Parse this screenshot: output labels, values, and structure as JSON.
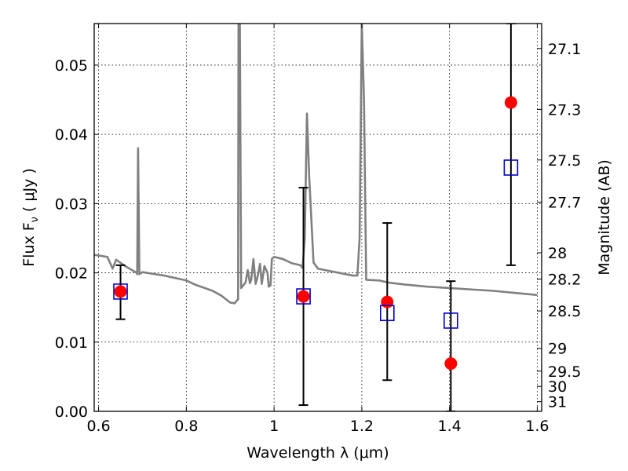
{
  "chart_data": {
    "type": "scatter",
    "xlabel": "Wavelength  λ (μm)",
    "ylabel": "Flux  F",
    "ylabel_sub": "ν",
    "ylabel_unit": "( μJy )",
    "ylabel_right": "Magnitude (AB)",
    "xlim": [
      0.59,
      1.61
    ],
    "ylim": [
      0.0,
      0.056
    ],
    "grid": true,
    "x_ticks": [
      {
        "value": 0.6,
        "label": "0.6"
      },
      {
        "value": 0.8,
        "label": "0.8"
      },
      {
        "value": 1.0,
        "label": "1"
      },
      {
        "value": 1.2,
        "label": "1.2"
      },
      {
        "value": 1.4,
        "label": "1.4"
      },
      {
        "value": 1.6,
        "label": "1.6"
      }
    ],
    "y_ticks": [
      {
        "value": 0.0,
        "label": "0.00"
      },
      {
        "value": 0.01,
        "label": "0.01"
      },
      {
        "value": 0.02,
        "label": "0.02"
      },
      {
        "value": 0.03,
        "label": "0.03"
      },
      {
        "value": 0.04,
        "label": "0.04"
      },
      {
        "value": 0.05,
        "label": "0.05"
      }
    ],
    "right_ticks": [
      {
        "label": "27.1",
        "flux": 0.0524
      },
      {
        "label": "27.3",
        "flux": 0.0436
      },
      {
        "label": "27.5",
        "flux": 0.0363
      },
      {
        "label": "27.7",
        "flux": 0.0302
      },
      {
        "label": "28",
        "flux": 0.0229
      },
      {
        "label": "28.2",
        "flux": 0.0191
      },
      {
        "label": "28.5",
        "flux": 0.0145
      },
      {
        "label": "29",
        "flux": 0.0091
      },
      {
        "label": "29.5",
        "flux": 0.0058
      },
      {
        "label": "30",
        "flux": 0.0036
      },
      {
        "label": "31",
        "flux": 0.0014
      }
    ],
    "series": [
      {
        "kind": "model_spectrum",
        "color": "#808080",
        "points": [
          [
            0.59,
            0.0226
          ],
          [
            0.62,
            0.0223
          ],
          [
            0.632,
            0.0206
          ],
          [
            0.64,
            0.0219
          ],
          [
            0.66,
            0.021
          ],
          [
            0.687,
            0.02
          ],
          [
            0.688,
            0.0198
          ],
          [
            0.69,
            0.038
          ],
          [
            0.693,
            0.0198
          ],
          [
            0.7,
            0.0201
          ],
          [
            0.75,
            0.0196
          ],
          [
            0.8,
            0.0189
          ],
          [
            0.82,
            0.0183
          ],
          [
            0.86,
            0.0174
          ],
          [
            0.88,
            0.0167
          ],
          [
            0.9,
            0.0157
          ],
          [
            0.91,
            0.0156
          ],
          [
            0.918,
            0.0162
          ],
          [
            0.919,
            0.056
          ],
          [
            0.922,
            0.056
          ],
          [
            0.925,
            0.0178
          ],
          [
            0.935,
            0.0186
          ],
          [
            0.94,
            0.0204
          ],
          [
            0.945,
            0.0185
          ],
          [
            0.948,
            0.019
          ],
          [
            0.953,
            0.022
          ],
          [
            0.958,
            0.0184
          ],
          [
            0.963,
            0.0196
          ],
          [
            0.968,
            0.0213
          ],
          [
            0.972,
            0.0184
          ],
          [
            0.978,
            0.021
          ],
          [
            0.985,
            0.02
          ],
          [
            0.988,
            0.018
          ],
          [
            0.992,
            0.0182
          ],
          [
            0.995,
            0.022
          ],
          [
            1.0,
            0.0223
          ],
          [
            1.02,
            0.022
          ],
          [
            1.04,
            0.0214
          ],
          [
            1.06,
            0.0211
          ],
          [
            1.065,
            0.0207
          ],
          [
            1.07,
            0.025
          ],
          [
            1.075,
            0.043
          ],
          [
            1.08,
            0.034
          ],
          [
            1.09,
            0.0215
          ],
          [
            1.1,
            0.0206
          ],
          [
            1.14,
            0.0201
          ],
          [
            1.18,
            0.0196
          ],
          [
            1.19,
            0.0196
          ],
          [
            1.195,
            0.025
          ],
          [
            1.2,
            0.056
          ],
          [
            1.205,
            0.045
          ],
          [
            1.21,
            0.019
          ],
          [
            1.24,
            0.0189
          ],
          [
            1.26,
            0.0186
          ],
          [
            1.3,
            0.0183
          ],
          [
            1.35,
            0.018
          ],
          [
            1.4,
            0.0178
          ],
          [
            1.45,
            0.0176
          ],
          [
            1.5,
            0.0174
          ],
          [
            1.55,
            0.0171
          ],
          [
            1.6,
            0.0168
          ]
        ]
      },
      {
        "kind": "observed_error_bars",
        "color": "#000000",
        "points": [
          {
            "x": 0.65,
            "lo": 0.0133,
            "hi": 0.0211
          },
          {
            "x": 1.067,
            "lo": 0.0009,
            "hi": 0.0323
          },
          {
            "x": 1.258,
            "lo": 0.0045,
            "hi": 0.0272
          },
          {
            "x": 1.403,
            "lo": 0.0,
            "hi": 0.0188
          },
          {
            "x": 1.54,
            "lo": 0.0211,
            "hi": 0.056
          }
        ]
      },
      {
        "kind": "observed_flux_points",
        "color": "#ff0000",
        "points": [
          {
            "x": 0.65,
            "y": 0.0173
          },
          {
            "x": 1.067,
            "y": 0.0166
          },
          {
            "x": 1.258,
            "y": 0.0158
          },
          {
            "x": 1.403,
            "y": 0.0069
          },
          {
            "x": 1.54,
            "y": 0.0446
          }
        ]
      },
      {
        "kind": "model_flux_points",
        "color": "#0000cc",
        "points": [
          {
            "x": 0.65,
            "y": 0.0173
          },
          {
            "x": 1.067,
            "y": 0.0166
          },
          {
            "x": 1.258,
            "y": 0.0142
          },
          {
            "x": 1.403,
            "y": 0.0131
          },
          {
            "x": 1.54,
            "y": 0.0352
          }
        ]
      }
    ]
  }
}
